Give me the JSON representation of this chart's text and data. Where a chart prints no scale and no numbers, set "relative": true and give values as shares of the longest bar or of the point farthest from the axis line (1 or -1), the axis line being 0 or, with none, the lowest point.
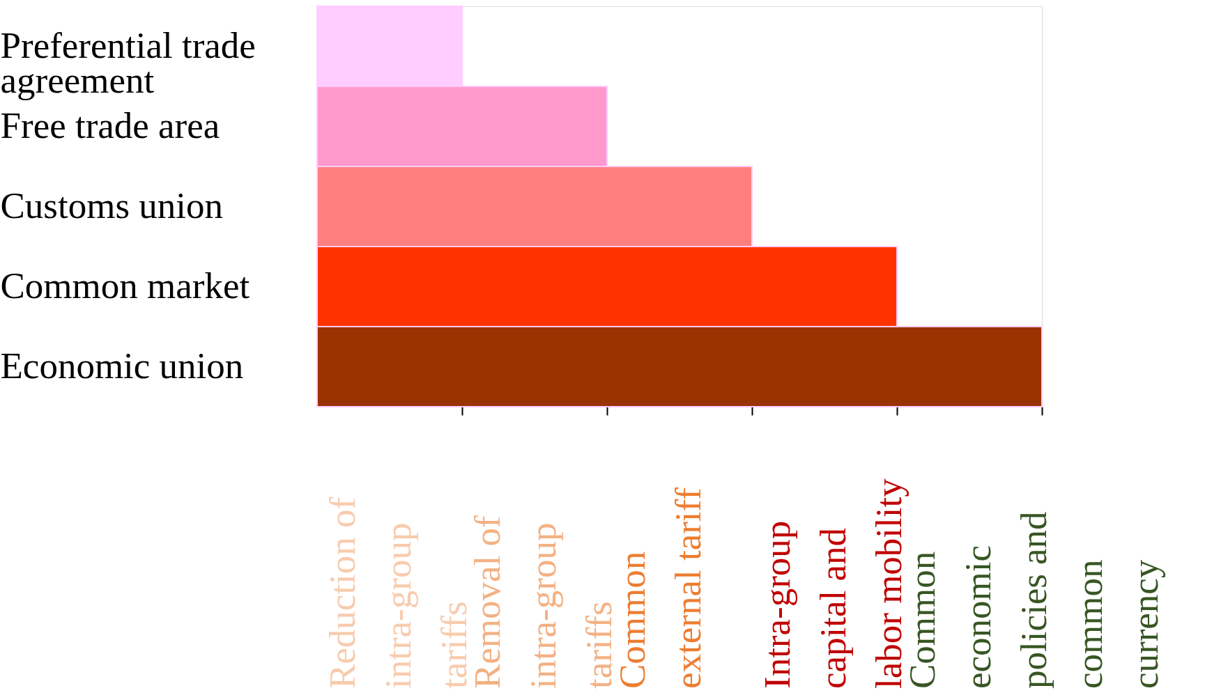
{
  "chart_data": {
    "type": "bar",
    "orientation": "horizontal",
    "relative": true,
    "categories": [
      "Preferential trade\nagreement",
      "Free trade area",
      "Customs union",
      "Common market",
      "Economic union"
    ],
    "values": [
      0.2,
      0.4,
      0.6,
      0.8,
      1.0
    ],
    "colors": [
      "#ffccff",
      "#ff99cc",
      "#ff7f7f",
      "#ff3300",
      "#993300"
    ],
    "annotations": [
      "Reduction of\nintra-group\ntariffs",
      "Removal of\nintra-group\ntariffs",
      "Common\nexternal tariff",
      "Intra-group\ncapital and\nlabor mobility",
      "Common\neconomic\npolicies and\ncommon\ncurrency"
    ],
    "grid": false
  }
}
